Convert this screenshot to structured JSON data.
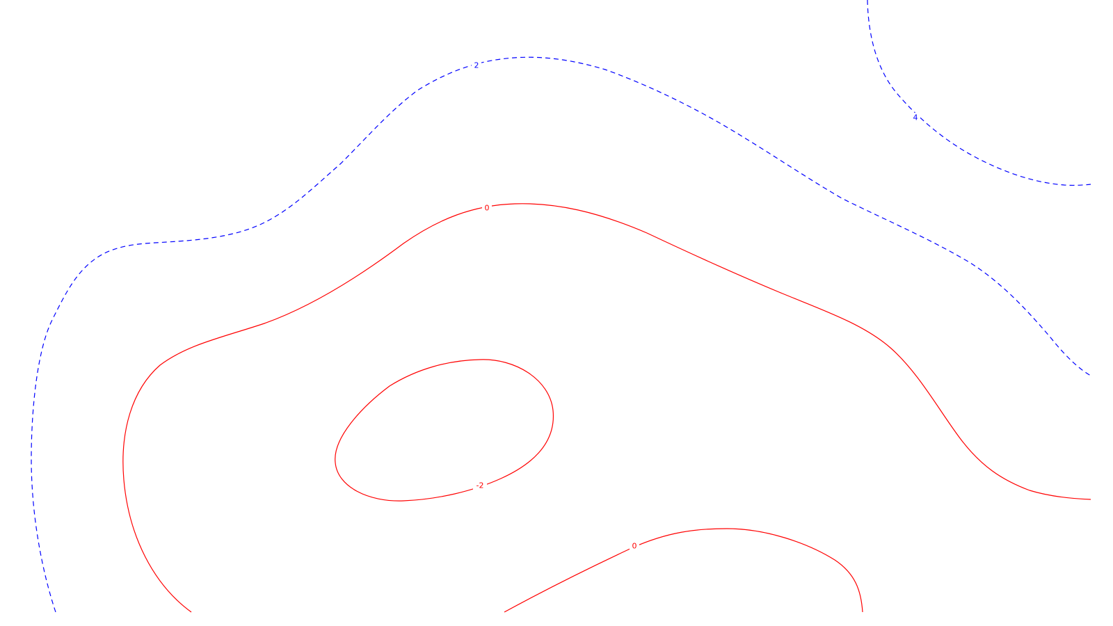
{
  "map": {
    "contours": [
      {
        "id": "contour-2-dashed",
        "label": "2",
        "style": "dashed",
        "color": "#0000ff"
      },
      {
        "id": "contour-4-dashed",
        "label": "4",
        "style": "dashed",
        "color": "#0000ff"
      },
      {
        "id": "contour-0-outer",
        "label": "0",
        "style": "solid",
        "color": "#ff0000"
      },
      {
        "id": "contour-neg2",
        "label": "-2",
        "style": "solid",
        "color": "#ff0000"
      },
      {
        "id": "contour-0-lower",
        "label": "0",
        "style": "solid",
        "color": "#ff0000"
      }
    ]
  }
}
